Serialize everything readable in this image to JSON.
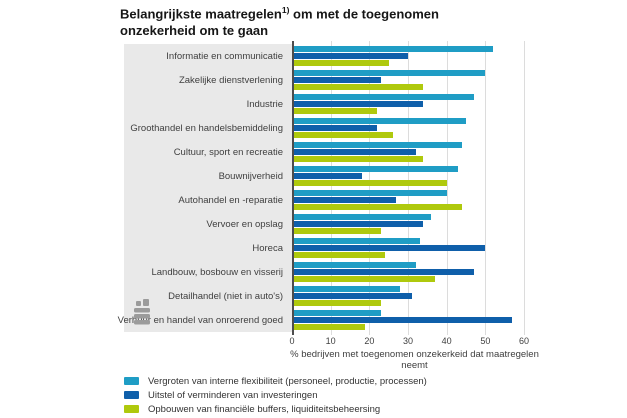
{
  "title": {
    "part1": "Belangrijkste maatregelen",
    "sup": "1)",
    "part2": " om met de toegenomen",
    "line2": "onzekerheid om te gaan"
  },
  "chart_data": {
    "type": "bar",
    "orientation": "horizontal",
    "title": "Belangrijkste maatregelen 1) om met de toegenomen onzekerheid om te gaan",
    "xlabel": "% bedrijven met toegenomen onzekerkeid dat maatregelen neemt",
    "xlim": [
      0,
      60
    ],
    "xticks": [
      0,
      10,
      20,
      30,
      40,
      50,
      60
    ],
    "grid": true,
    "legend_position": "bottom",
    "categories": [
      "Informatie en communicatie",
      "Zakelijke dienstverlening",
      "Industrie",
      "Groothandel en handelsbemiddeling",
      "Cultuur, sport en recreatie",
      "Bouwnijverheid",
      "Autohandel en -reparatie",
      "Vervoer en opslag",
      "Horeca",
      "Landbouw, bosbouw en visserij",
      "Detailhandel (niet in auto's)",
      "Verhuur en handel van onroerend goed"
    ],
    "series": [
      {
        "name": "Vergroten van interne flexibiliteit (personeel, productie, processen)",
        "color": "#1f9dc5",
        "values": [
          52,
          50,
          47,
          45,
          44,
          43,
          40,
          36,
          33,
          32,
          28,
          23
        ]
      },
      {
        "name": "Uitstel of verminderen van investeringen",
        "color": "#0f5faa",
        "values": [
          30,
          23,
          34,
          22,
          32,
          18,
          27,
          34,
          50,
          47,
          31,
          57
        ]
      },
      {
        "name": "Opbouwen van financiële buffers, liquiditeitsbeheersing",
        "color": "#afc90d",
        "values": [
          25,
          34,
          22,
          26,
          34,
          40,
          44,
          23,
          24,
          37,
          23,
          19
        ]
      }
    ]
  },
  "logo": {
    "name": "cbs-logo"
  }
}
